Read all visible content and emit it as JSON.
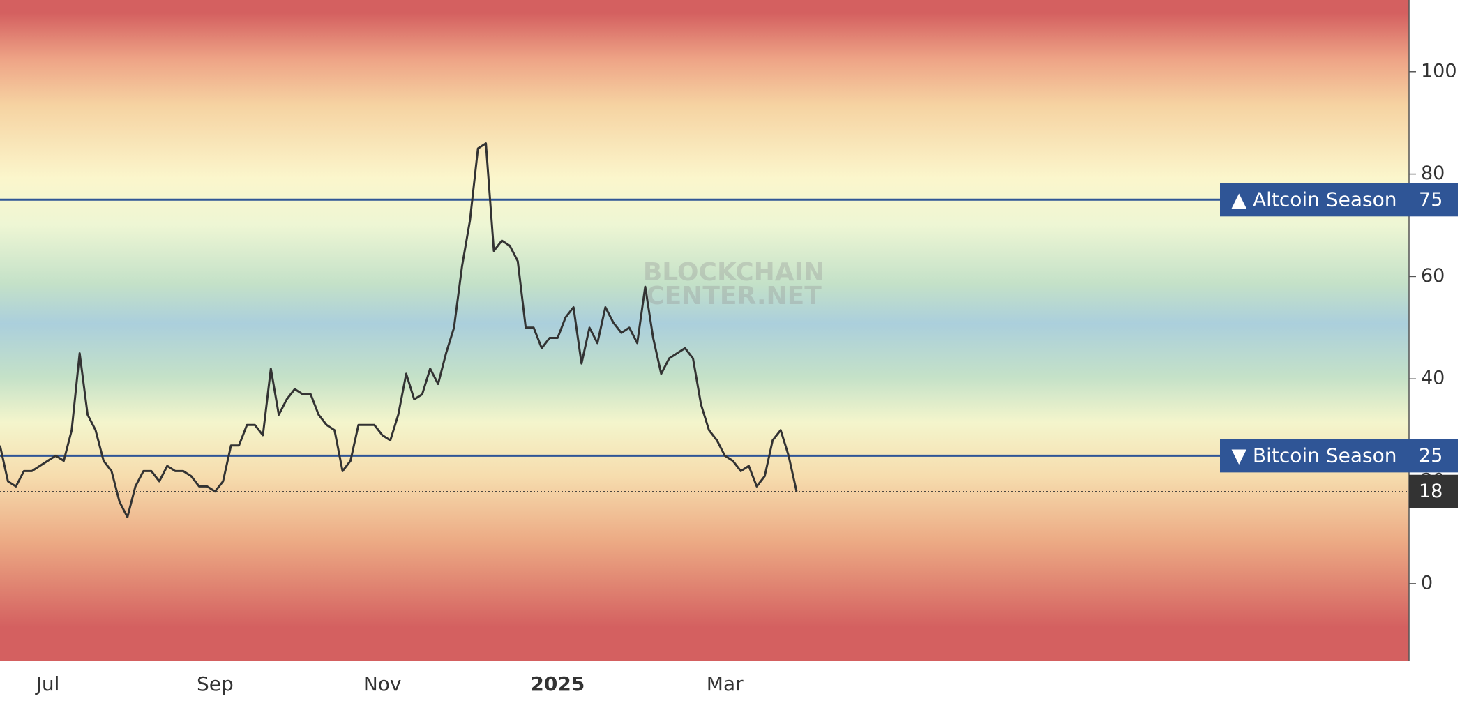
{
  "chart_data": {
    "type": "line",
    "categories": [
      null,
      null,
      null,
      null,
      null,
      null,
      "Jul",
      null,
      null,
      null,
      null,
      null,
      null,
      null,
      null,
      null,
      null,
      null,
      null,
      null,
      null,
      null,
      null,
      null,
      null,
      null,
      null,
      "Sep",
      null,
      null,
      null,
      null,
      null,
      null,
      null,
      null,
      null,
      null,
      null,
      null,
      null,
      null,
      null,
      null,
      null,
      null,
      null,
      null,
      "Nov",
      null,
      null,
      null,
      null,
      null,
      null,
      null,
      null,
      null,
      null,
      null,
      null,
      null,
      null,
      null,
      null,
      null,
      null,
      null,
      null,
      null,
      "2025",
      null,
      null,
      null,
      null,
      null,
      null,
      null,
      null,
      null,
      null,
      null,
      null,
      null,
      null,
      null,
      null,
      null,
      null,
      null,
      null,
      "Mar",
      null,
      null,
      null,
      null,
      null,
      null,
      null,
      null,
      null
    ],
    "series": [
      {
        "color": "#333333",
        "values": [
          27,
          20,
          19,
          22,
          22,
          23,
          24,
          25,
          24,
          30,
          45,
          33,
          30,
          24,
          22,
          16,
          13,
          19,
          22,
          22,
          20,
          23,
          22,
          22,
          21,
          19,
          19,
          18,
          20,
          27,
          27,
          31,
          31,
          29,
          42,
          33,
          36,
          38,
          37,
          37,
          33,
          31,
          30,
          22,
          24,
          31,
          31,
          31,
          29,
          28,
          33,
          41,
          36,
          37,
          42,
          39,
          45,
          50,
          62,
          71,
          85,
          86,
          65,
          67,
          66,
          63,
          50,
          50,
          46,
          48,
          48,
          52,
          54,
          43,
          50,
          47,
          54,
          51,
          49,
          50,
          47,
          58,
          48,
          41,
          44,
          45,
          46,
          44,
          35,
          30,
          28,
          25,
          24,
          22,
          23,
          19,
          21,
          28,
          30,
          25,
          18
        ]
      }
    ],
    "thresholds": [
      {
        "name": "▲ Altcoin Season",
        "value": 75,
        "color": "#2f5596"
      },
      {
        "name": "▼ Bitcoin Season",
        "value": 25,
        "color": "#2f5596"
      }
    ],
    "watermark": [
      "BLOCKCHAIN",
      "CENTER.NET"
    ],
    "ylim": [
      -15,
      114
    ],
    "yticks": [
      0,
      20,
      40,
      60,
      80,
      100
    ]
  }
}
